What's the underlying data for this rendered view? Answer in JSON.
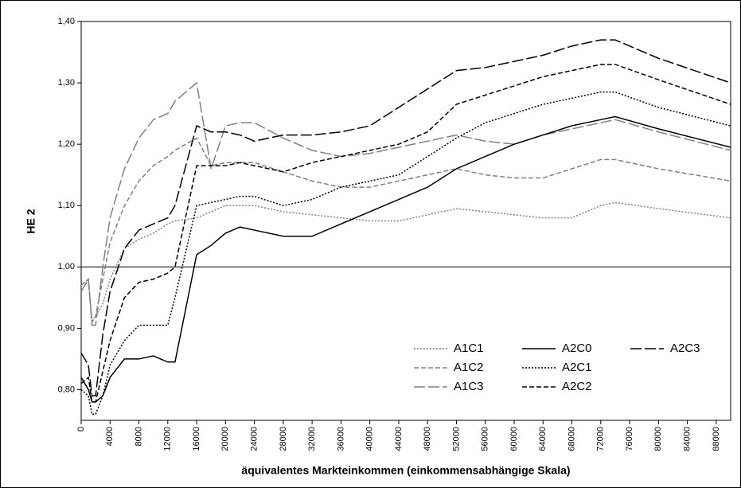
{
  "chart_data": {
    "type": "line",
    "xlabel": "äquivalentes Markteinkommen (einkommensabhängige Skala)",
    "ylabel": "HE 2",
    "x": [
      0,
      1000,
      1500,
      2000,
      3000,
      4000,
      6000,
      8000,
      10000,
      12000,
      13000,
      16000,
      18000,
      20000,
      22000,
      24000,
      28000,
      32000,
      36000,
      40000,
      44000,
      48000,
      52000,
      56000,
      60000,
      64000,
      68000,
      72000,
      74000,
      80000,
      90000
    ],
    "series": [
      {
        "name": "A1C1",
        "color": "#808080",
        "dash": "2,2",
        "values": [
          0.97,
          0.98,
          0.91,
          0.92,
          0.94,
          0.98,
          1.03,
          1.045,
          1.055,
          1.07,
          1.075,
          1.08,
          1.09,
          1.1,
          1.1,
          1.1,
          1.09,
          1.085,
          1.08,
          1.075,
          1.075,
          1.085,
          1.095,
          1.09,
          1.085,
          1.08,
          1.08,
          1.1,
          1.105,
          1.095,
          1.08
        ]
      },
      {
        "name": "A1C2",
        "color": "#808080",
        "dash": "6,3",
        "values": [
          0.97,
          0.98,
          0.91,
          0.92,
          0.98,
          1.04,
          1.1,
          1.14,
          1.165,
          1.18,
          1.19,
          1.21,
          1.165,
          1.17,
          1.17,
          1.17,
          1.155,
          1.14,
          1.13,
          1.13,
          1.14,
          1.15,
          1.16,
          1.15,
          1.145,
          1.145,
          1.16,
          1.175,
          1.175,
          1.16,
          1.14
        ]
      },
      {
        "name": "A1C3",
        "color": "#808080",
        "dash": "14,4",
        "values": [
          0.96,
          0.98,
          0.905,
          0.905,
          1.0,
          1.08,
          1.16,
          1.21,
          1.24,
          1.25,
          1.27,
          1.3,
          1.16,
          1.23,
          1.235,
          1.235,
          1.21,
          1.19,
          1.18,
          1.185,
          1.195,
          1.205,
          1.215,
          1.205,
          1.2,
          1.215,
          1.225,
          1.235,
          1.24,
          1.22,
          1.19
        ]
      },
      {
        "name": "A2C0",
        "color": "#000000",
        "dash": "none",
        "values": [
          0.82,
          0.8,
          0.78,
          0.78,
          0.79,
          0.82,
          0.85,
          0.85,
          0.855,
          0.845,
          0.845,
          1.02,
          1.035,
          1.055,
          1.065,
          1.06,
          1.05,
          1.05,
          1.07,
          1.09,
          1.11,
          1.13,
          1.16,
          1.18,
          1.2,
          1.215,
          1.23,
          1.24,
          1.245,
          1.225,
          1.195
        ]
      },
      {
        "name": "A2C1",
        "color": "#000000",
        "dash": "2,2",
        "values": [
          0.8,
          0.79,
          0.76,
          0.76,
          0.79,
          0.84,
          0.88,
          0.905,
          0.905,
          0.905,
          0.95,
          1.1,
          1.105,
          1.11,
          1.115,
          1.115,
          1.1,
          1.11,
          1.13,
          1.14,
          1.15,
          1.18,
          1.21,
          1.235,
          1.25,
          1.265,
          1.275,
          1.285,
          1.285,
          1.26,
          1.23
        ]
      },
      {
        "name": "A2C2",
        "color": "#000000",
        "dash": "6,3",
        "values": [
          0.81,
          0.82,
          0.78,
          0.78,
          0.83,
          0.88,
          0.95,
          0.975,
          0.98,
          0.99,
          1.0,
          1.165,
          1.165,
          1.165,
          1.17,
          1.165,
          1.155,
          1.17,
          1.18,
          1.19,
          1.2,
          1.22,
          1.265,
          1.28,
          1.295,
          1.31,
          1.32,
          1.33,
          1.33,
          1.305,
          1.265
        ]
      },
      {
        "name": "A2C3",
        "color": "#000000",
        "dash": "14,4",
        "values": [
          0.86,
          0.84,
          0.79,
          0.79,
          0.89,
          0.96,
          1.03,
          1.06,
          1.07,
          1.08,
          1.1,
          1.23,
          1.22,
          1.22,
          1.215,
          1.205,
          1.215,
          1.215,
          1.22,
          1.23,
          1.26,
          1.29,
          1.32,
          1.325,
          1.335,
          1.345,
          1.36,
          1.37,
          1.37,
          1.34,
          1.3
        ]
      }
    ],
    "xlim": [
      0,
      90000
    ],
    "xticks": [
      0,
      4000,
      8000,
      12000,
      16000,
      20000,
      24000,
      28000,
      32000,
      36000,
      40000,
      44000,
      48000,
      52000,
      56000,
      60000,
      64000,
      68000,
      72000,
      76000,
      80000,
      84000,
      88000
    ],
    "ylim": [
      0.75,
      1.4
    ],
    "yticks": [
      {
        "value": 0.8,
        "label": "0,80"
      },
      {
        "value": 0.9,
        "label": "0,90"
      },
      {
        "value": 1.0,
        "label": "1,00"
      },
      {
        "value": 1.1,
        "label": "1,10"
      },
      {
        "value": 1.2,
        "label": "1,20"
      },
      {
        "value": 1.3,
        "label": "1,30"
      },
      {
        "value": 1.4,
        "label": "1,40"
      }
    ],
    "reference_line": 1.0,
    "legend": "lower right",
    "grid": false
  }
}
